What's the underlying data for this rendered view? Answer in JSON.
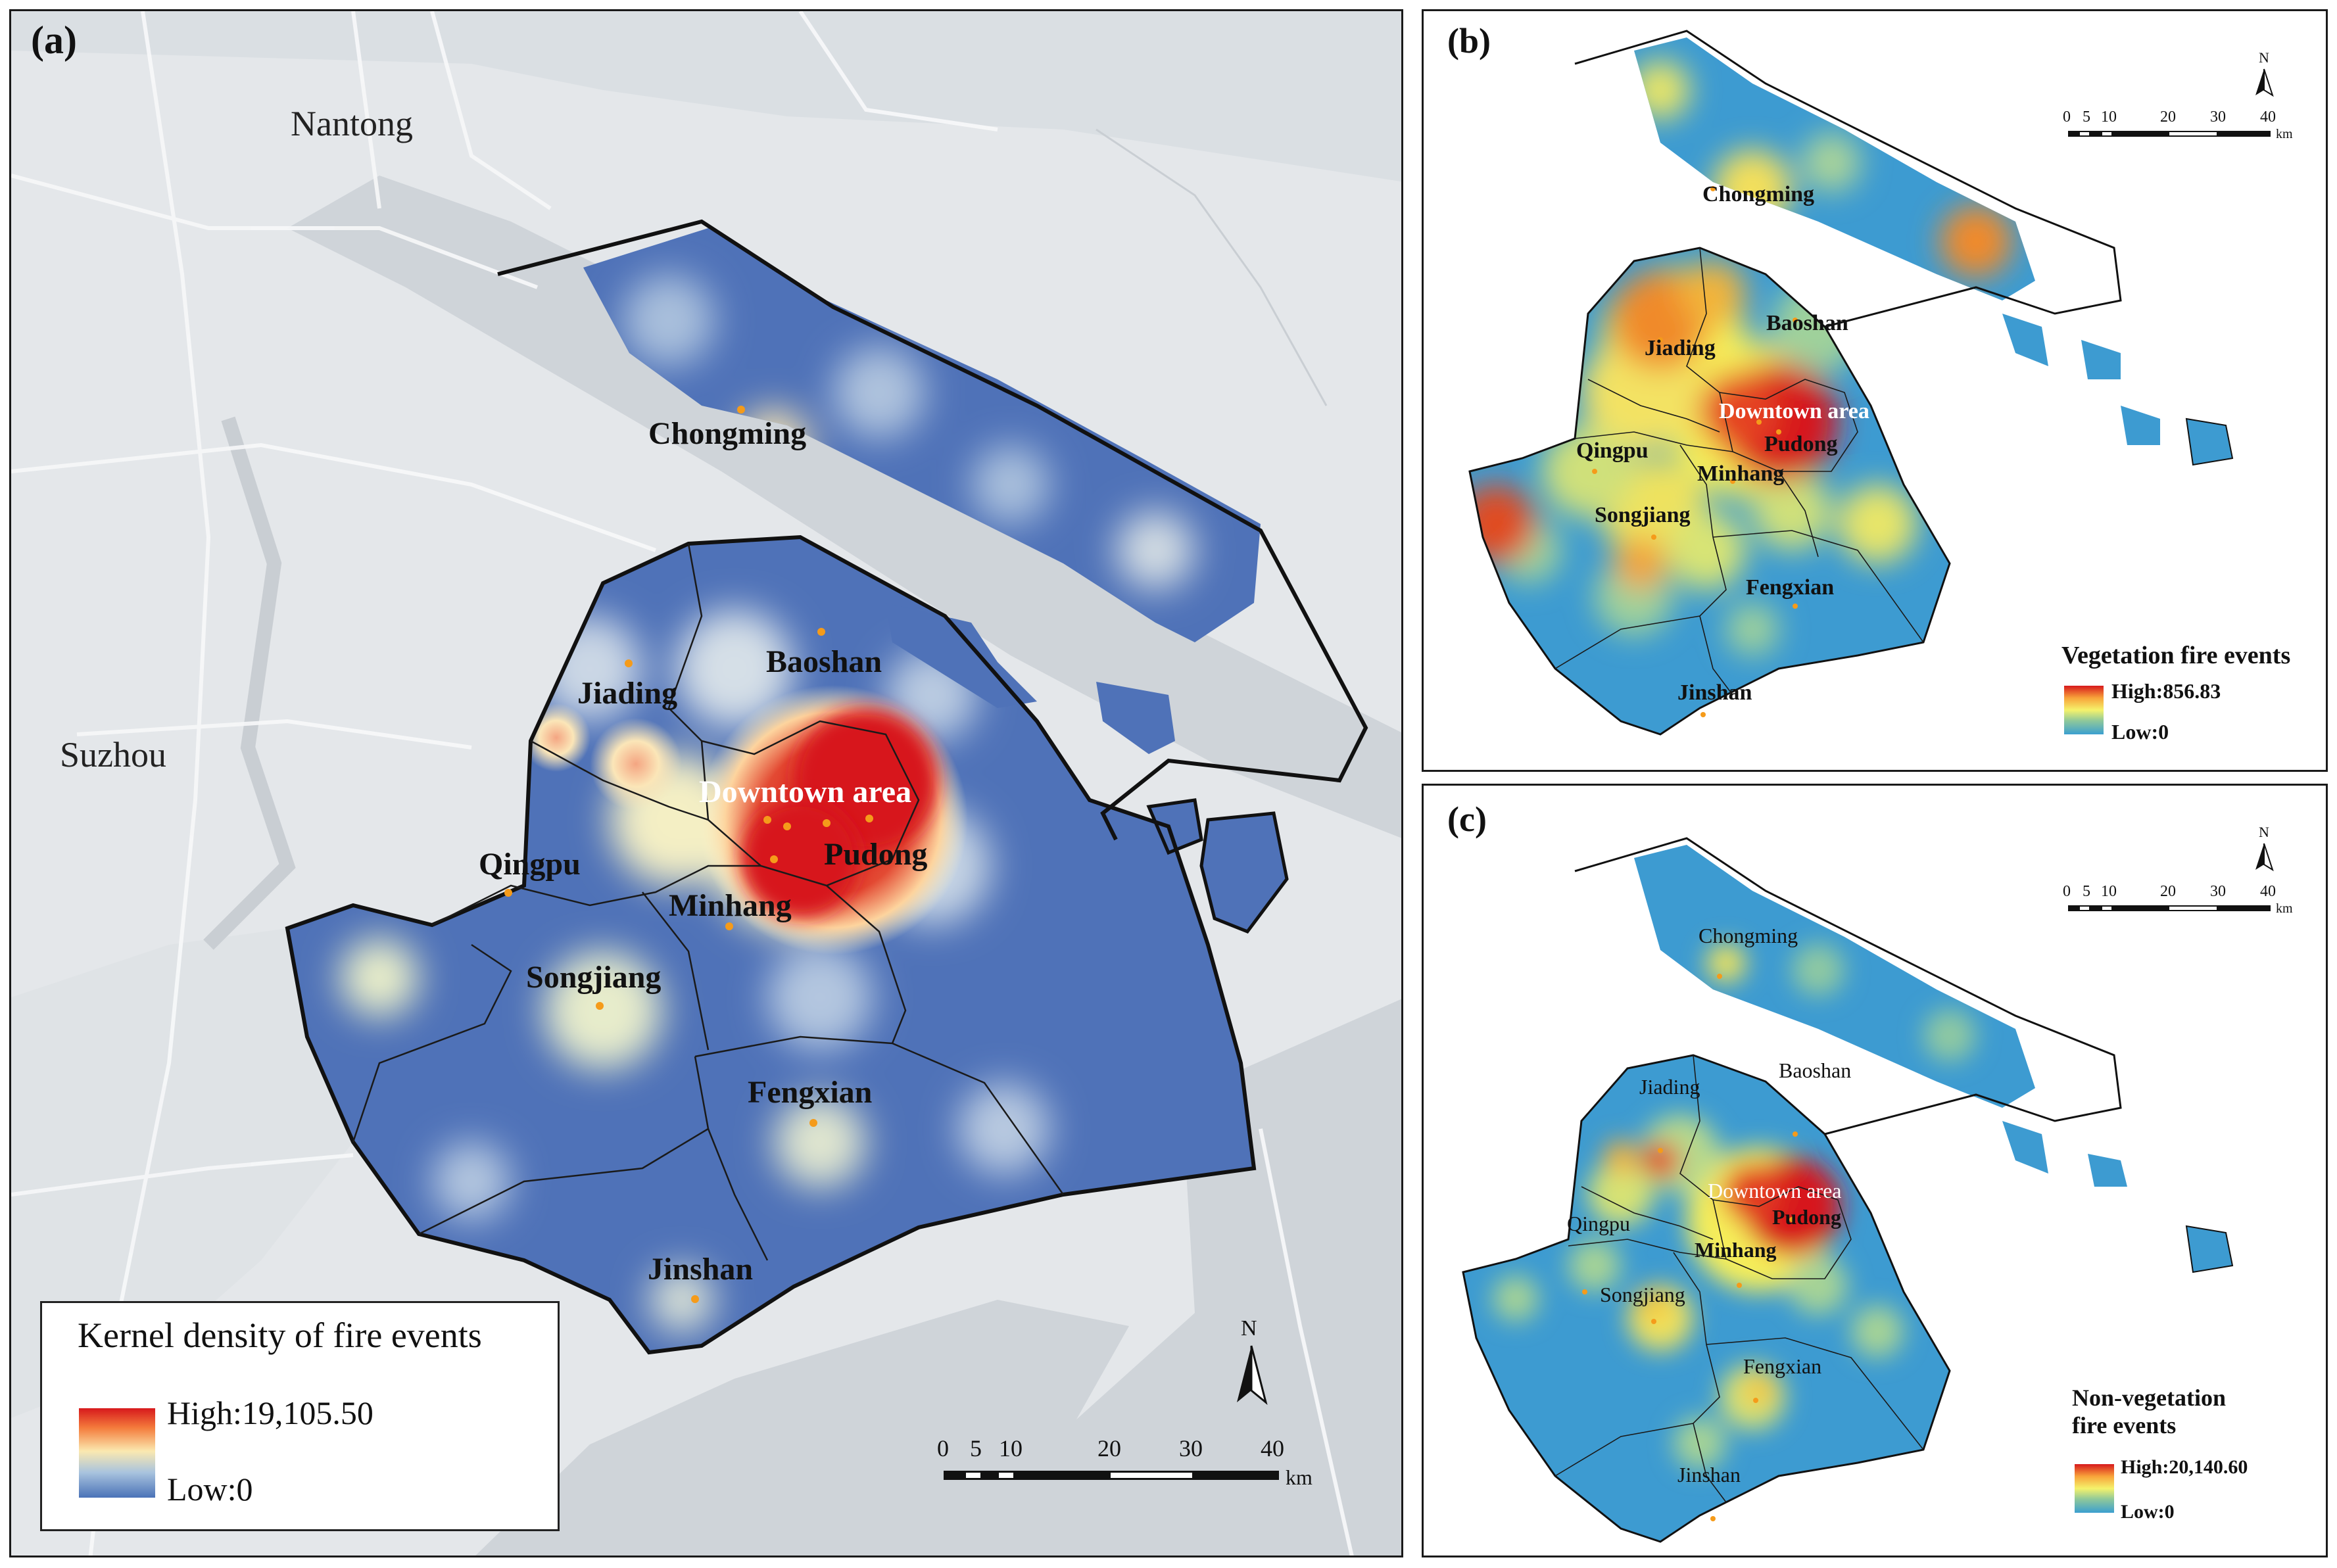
{
  "panel_a": {
    "label": "(a)",
    "cities": [
      "Nantong",
      "Suzhou"
    ],
    "districts": [
      "Chongming",
      "Baoshan",
      "Jiading",
      "Downtown area",
      "Pudong",
      "Qingpu",
      "Minhang",
      "Songjiang",
      "Fengxian",
      "Jinshan"
    ],
    "legend": {
      "title": "Kernel density of  fire events",
      "high": "High:19,105.50",
      "low": "Low:0"
    },
    "north": "N",
    "scale": {
      "ticks": [
        "0",
        "5",
        "10",
        "20",
        "30",
        "40"
      ],
      "unit": "km"
    }
  },
  "panel_b": {
    "label": "(b)",
    "districts": [
      "Chongming",
      "Baoshan",
      "Jiading",
      "Downtown area",
      "Pudong",
      "Qingpu",
      "Minhang",
      "Songjiang",
      "Fengxian",
      "Jinshan"
    ],
    "legend": {
      "title": "Vegetation fire events",
      "high": "High:856.83",
      "low": "Low:0"
    },
    "north": "N",
    "scale": {
      "ticks": [
        "0",
        "5",
        "10",
        "20",
        "30",
        "40"
      ],
      "unit": "km"
    }
  },
  "panel_c": {
    "label": "(c)",
    "districts": [
      "Chongming",
      "Baoshan",
      "Jiading",
      "Downtown area",
      "Pudong",
      "Qingpu",
      "Minhang",
      "Songjiang",
      "Fengxian",
      "Jinshan"
    ],
    "legend": {
      "title_line1": "Non-vegetation",
      "title_line2": "fire events",
      "high": "High:20,140.60",
      "low": "Low:0"
    },
    "north": "N",
    "scale": {
      "ticks": [
        "0",
        "5",
        "10",
        "20",
        "30",
        "40"
      ],
      "unit": "km"
    }
  },
  "colors": {
    "base_a": "#4f72b8",
    "base_bc": "#3d9bd1",
    "hot": "#d7191c",
    "land_bg": "#e4e7ea",
    "water_bg": "#cfd4d9"
  }
}
